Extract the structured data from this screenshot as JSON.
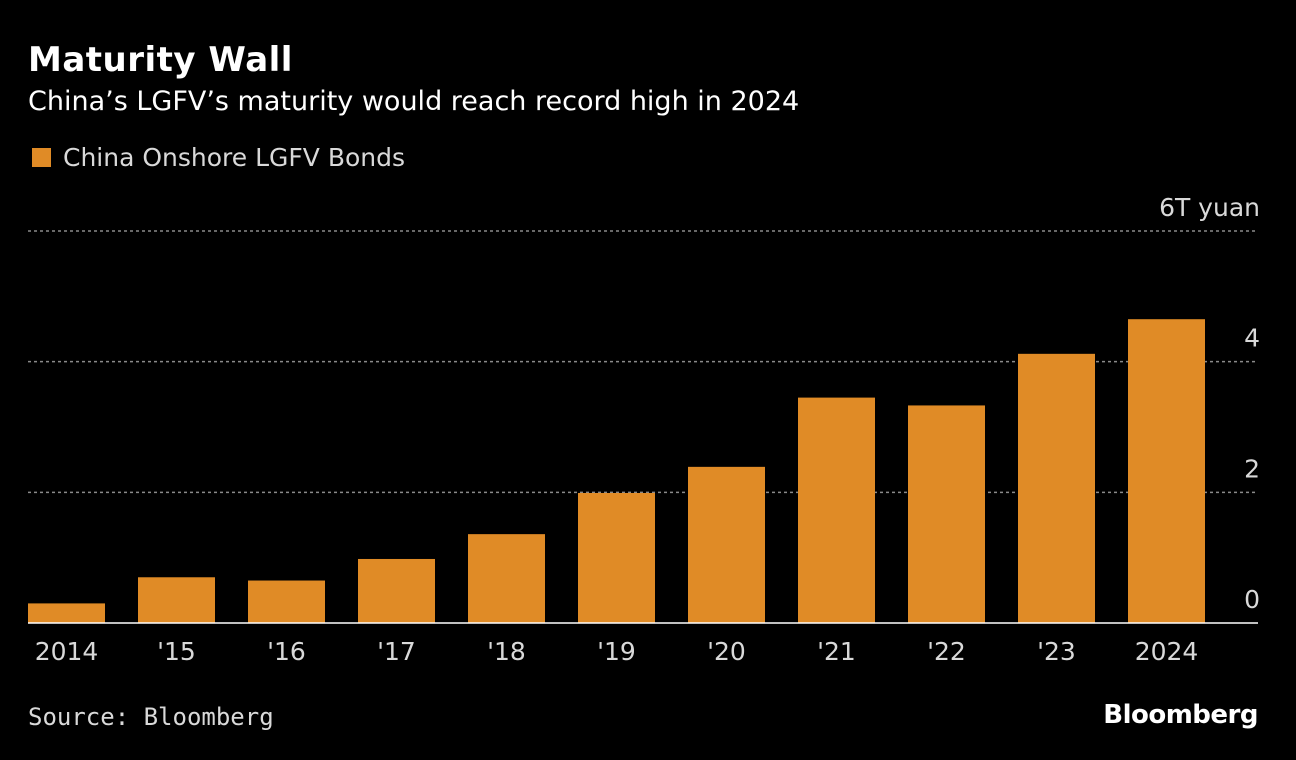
{
  "colors": {
    "background": "#000000",
    "bar": "#e08b26",
    "text": "#ffffff",
    "muted": "#d9d9d9",
    "grid": "#8a8a8a"
  },
  "header": {
    "title": "Maturity Wall",
    "subtitle": "China’s LGFV’s maturity would reach record high in 2024"
  },
  "legend": {
    "label": "China Onshore LGFV Bonds"
  },
  "footer": {
    "source": "Source: Bloomberg",
    "brand": "Bloomberg"
  },
  "chart_data": {
    "type": "bar",
    "categories": [
      "2014",
      "'15",
      "'16",
      "'17",
      "'18",
      "'19",
      "'20",
      "'21",
      "'22",
      "'23",
      "2024"
    ],
    "series": [
      {
        "name": "China Onshore LGFV Bonds",
        "values": [
          0.3,
          0.7,
          0.65,
          0.98,
          1.36,
          1.99,
          2.39,
          3.45,
          3.33,
          4.12,
          4.65
        ]
      }
    ],
    "ylim": [
      0,
      6
    ],
    "yticks": [
      0,
      2,
      4,
      6
    ],
    "ytick_labels": [
      "0",
      "2",
      "4",
      "6T yuan"
    ],
    "grid": true,
    "legend_position": "top-left"
  }
}
